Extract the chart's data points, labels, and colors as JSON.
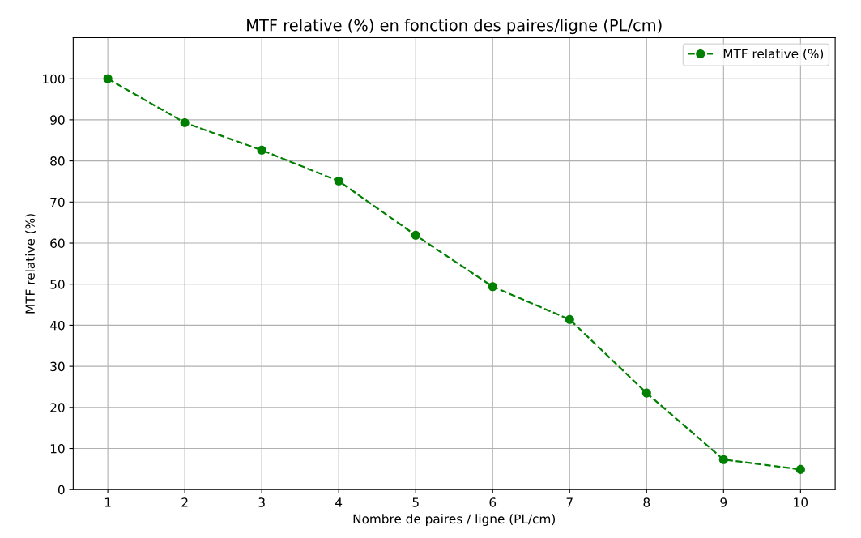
{
  "chart_data": {
    "type": "line",
    "title": "MTF relative (%) en fonction des paires/ligne (PL/cm)",
    "xlabel": "Nombre de paires / ligne (PL/cm)",
    "ylabel": "MTF relative (%)",
    "x": [
      1,
      2,
      3,
      4,
      5,
      6,
      7,
      8,
      9,
      10
    ],
    "series": [
      {
        "name": "MTF relative (%)",
        "color": "#008000",
        "values": [
          100,
          89.3,
          82.6,
          75.1,
          61.9,
          49.4,
          41.4,
          23.5,
          7.3,
          4.9
        ]
      }
    ],
    "xlim": [
      0.55,
      10.45
    ],
    "xticks": [
      1,
      2,
      3,
      4,
      5,
      6,
      7,
      8,
      9,
      10
    ],
    "ylim": [
      0,
      110
    ],
    "yticks": [
      0,
      10,
      20,
      30,
      40,
      50,
      60,
      70,
      80,
      90,
      100
    ],
    "grid": true,
    "legend": "top right",
    "marker": "circle",
    "line_style": "dashed"
  }
}
